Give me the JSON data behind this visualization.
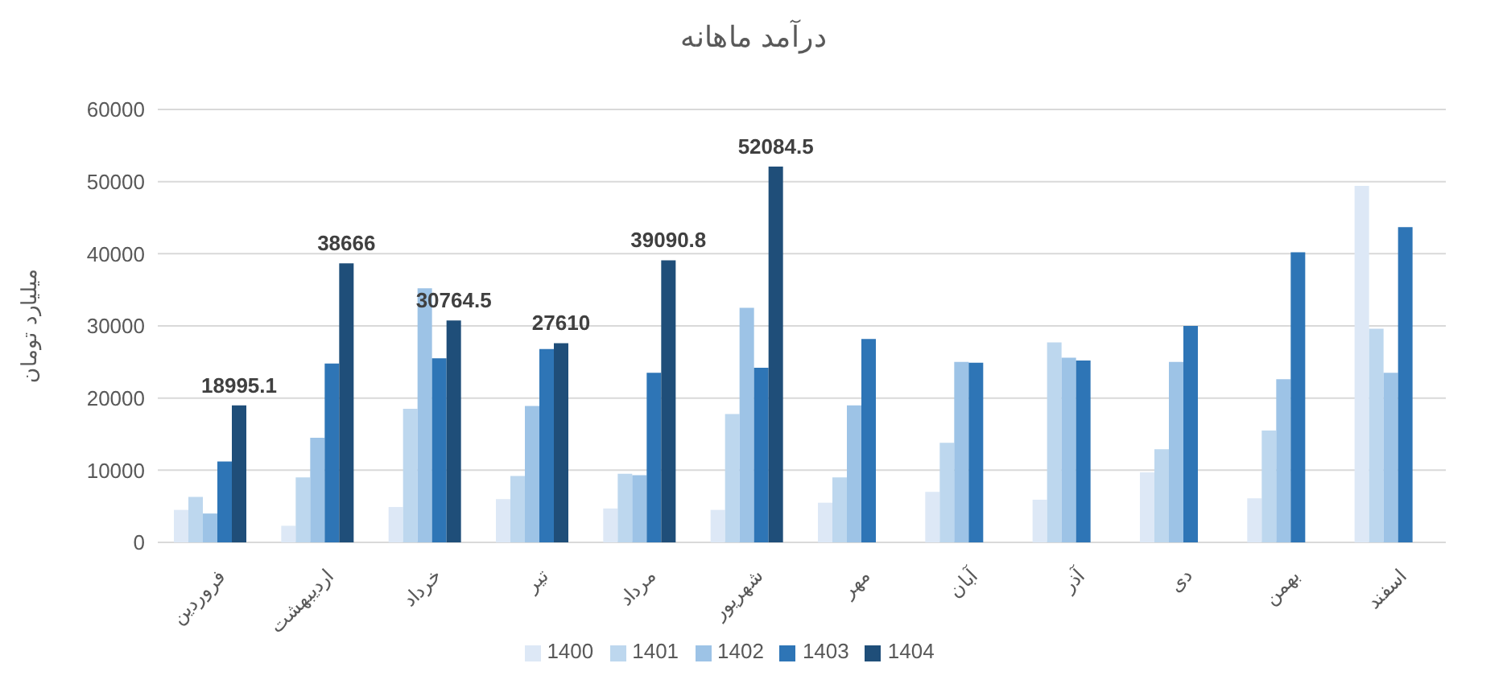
{
  "chart_data": {
    "type": "bar",
    "title": "درآمد ماهانه",
    "ylabel": "میلیارد تومان",
    "categories": [
      "فروردین",
      "اردیبهشت",
      "خرداد",
      "تیر",
      "مرداد",
      "شهریور",
      "مهر",
      "آبان",
      "آذر",
      "دی",
      "بهمن",
      "اسفند"
    ],
    "series": [
      {
        "name": "1400",
        "color": "#dde8f6",
        "values": [
          4500,
          2300,
          4900,
          6000,
          4700,
          4500,
          5500,
          7000,
          5900,
          9700,
          6100,
          49400
        ]
      },
      {
        "name": "1401",
        "color": "#bdd7ee",
        "values": [
          6300,
          9000,
          18500,
          9200,
          9500,
          17800,
          9000,
          13800,
          27700,
          12900,
          15500,
          29600
        ]
      },
      {
        "name": "1402",
        "color": "#9dc3e6",
        "values": [
          4000,
          14500,
          35200,
          18900,
          9300,
          32500,
          19000,
          25000,
          25600,
          25000,
          22600,
          23500
        ]
      },
      {
        "name": "1403",
        "color": "#2e75b6",
        "values": [
          11200,
          24800,
          25500,
          26800,
          23500,
          24200,
          28200,
          24900,
          25200,
          30000,
          40200,
          43700
        ]
      },
      {
        "name": "1404",
        "color": "#1f4e79",
        "values": [
          18995.1,
          38666,
          30764.5,
          27610,
          39090.8,
          52084.5,
          null,
          null,
          null,
          null,
          null,
          null
        ],
        "value_labels": [
          "18995.1",
          "38666",
          "30764.5",
          "27610",
          "39090.8",
          "52084.5",
          null,
          null,
          null,
          null,
          null,
          null
        ]
      }
    ],
    "ylim": [
      0,
      60000
    ],
    "yticks": [
      0,
      10000,
      20000,
      30000,
      40000,
      50000,
      60000
    ],
    "grid": "y",
    "legend": "bottom"
  }
}
